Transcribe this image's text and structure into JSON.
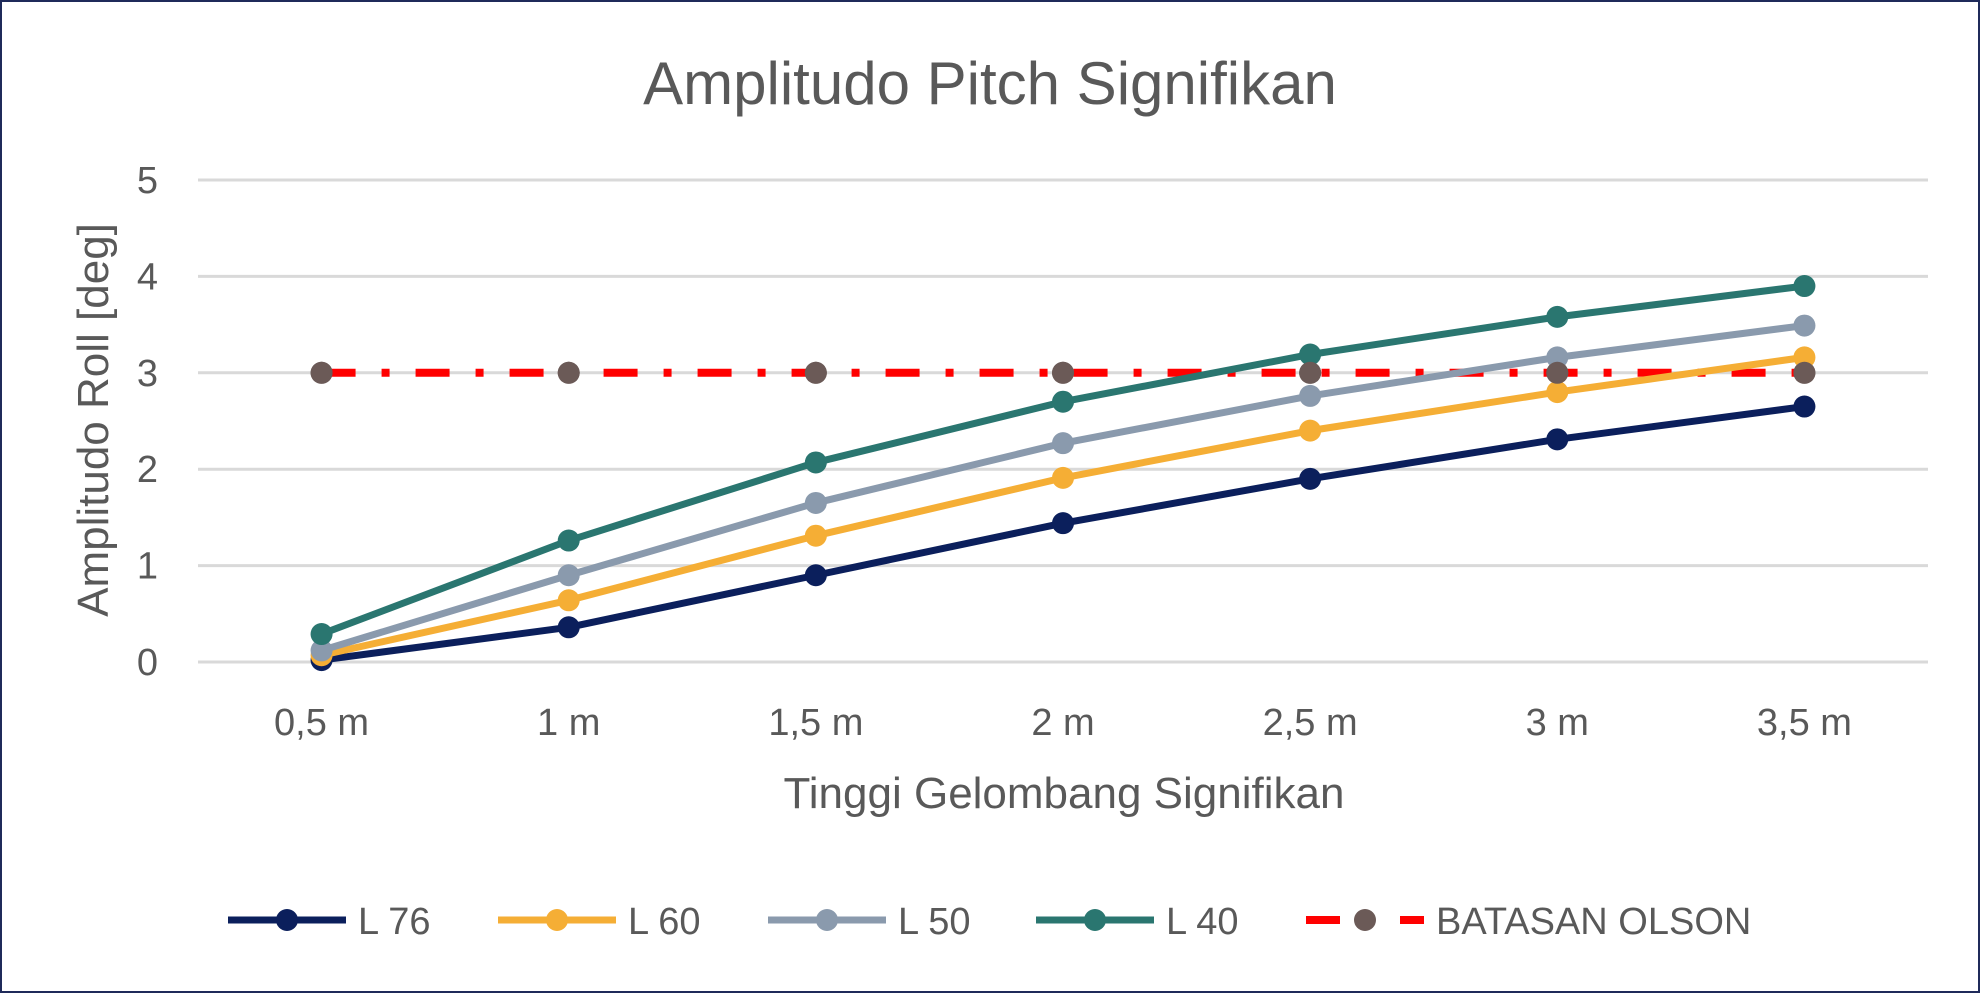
{
  "chart_data": {
    "type": "line",
    "title": "Amplitudo Pitch Signifikan",
    "xlabel": "Tinggi Gelombang Signifikan",
    "ylabel": "Amplitudo Roll [deg]",
    "categories": [
      "0,5 m",
      "1 m",
      "1,5 m",
      "2 m",
      "2,5 m",
      "3 m",
      "3,5 m"
    ],
    "ylim": [
      0,
      5
    ],
    "yticks": [
      0,
      1,
      2,
      3,
      4,
      5
    ],
    "grid": true,
    "legend_position": "bottom",
    "series": [
      {
        "name": "L 76",
        "values": [
          0.02,
          0.36,
          0.9,
          1.44,
          1.9,
          2.31,
          2.65
        ],
        "color": "#0b1f5c",
        "marker_color": "#0b1f5c",
        "style": "solid"
      },
      {
        "name": "L 60",
        "values": [
          0.07,
          0.64,
          1.31,
          1.91,
          2.4,
          2.8,
          3.16
        ],
        "color": "#f5ae35",
        "marker_color": "#f5ae35",
        "style": "solid"
      },
      {
        "name": "L 50",
        "values": [
          0.12,
          0.9,
          1.65,
          2.27,
          2.76,
          3.16,
          3.49
        ],
        "color": "#8a9aad",
        "marker_color": "#8a9aad",
        "style": "solid"
      },
      {
        "name": "L 40",
        "values": [
          0.29,
          1.26,
          2.07,
          2.7,
          3.19,
          3.58,
          3.9
        ],
        "color": "#2a7670",
        "marker_color": "#2a7670",
        "style": "solid"
      },
      {
        "name": "BATASAN OLSON",
        "values": [
          3,
          3,
          3,
          3,
          3,
          3,
          3
        ],
        "color": "#ff0000",
        "marker_color": "#6b5a57",
        "style": "dash-dot"
      }
    ]
  }
}
